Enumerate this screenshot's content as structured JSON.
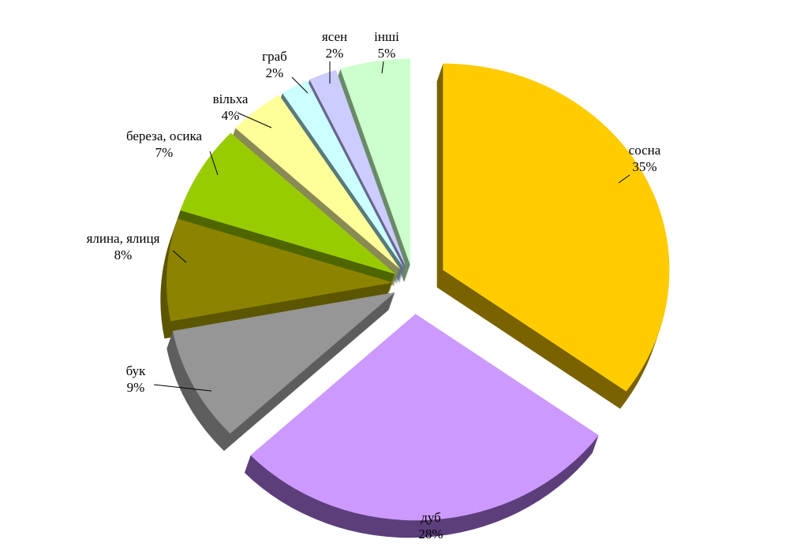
{
  "chart_data": {
    "type": "pie",
    "title": "",
    "style": "3d-exploded",
    "slices": [
      {
        "name": "сосна",
        "value": 35,
        "pct_label": "35%",
        "color": "#FFCC00",
        "side": "#7A6200"
      },
      {
        "name": "дуб",
        "value": 28,
        "pct_label": "28%",
        "color": "#CC99FF",
        "side": "#5C3F7A"
      },
      {
        "name": "бук",
        "value": 9,
        "pct_label": "9%",
        "color": "#969696",
        "side": "#5E5E5E"
      },
      {
        "name": "ялина, ялиця",
        "value": 8,
        "pct_label": "8%",
        "color": "#8C8400",
        "side": "#5C5600"
      },
      {
        "name": "береза, осика",
        "value": 7,
        "pct_label": "7%",
        "color": "#99CC00",
        "side": "#4F6600"
      },
      {
        "name": "вільха",
        "value": 4,
        "pct_label": "4%",
        "color": "#FFFF99",
        "side": "#8A8A55"
      },
      {
        "name": "граб",
        "value": 2,
        "pct_label": "2%",
        "color": "#CCFFFF",
        "side": "#5A7A7A"
      },
      {
        "name": "ясен",
        "value": 2,
        "pct_label": "2%",
        "color": "#CCCCFF",
        "side": "#66668C"
      },
      {
        "name": "інші",
        "value": 5,
        "pct_label": "5%",
        "color": "#CCFFCC",
        "side": "#6A8A6A"
      }
    ]
  }
}
